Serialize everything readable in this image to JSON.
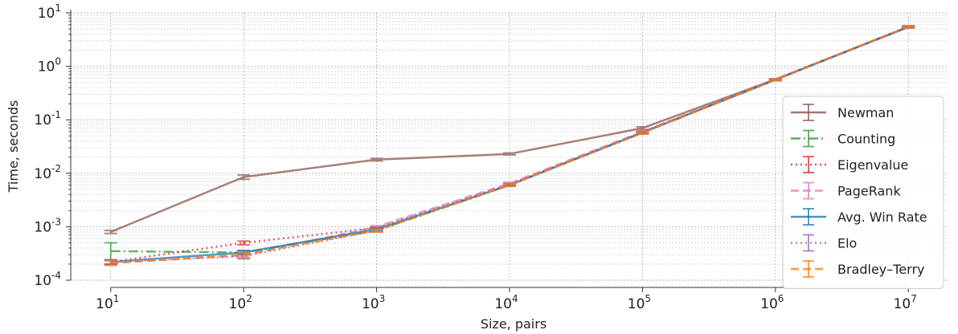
{
  "chart_data": {
    "type": "line",
    "title": "",
    "xlabel": "Size, pairs",
    "ylabel": "Time, seconds",
    "xscale": "log",
    "yscale": "log",
    "xlim": [
      5,
      20000000
    ],
    "ylim": [
      0.0001,
      10
    ],
    "grid": true,
    "legend_position": "right",
    "x": [
      10,
      100,
      1000,
      10000,
      100000,
      1000000,
      10000000
    ],
    "x_tick_labels": [
      {
        "base": "10",
        "exp": "1"
      },
      {
        "base": "10",
        "exp": "2"
      },
      {
        "base": "10",
        "exp": "3"
      },
      {
        "base": "10",
        "exp": "4"
      },
      {
        "base": "10",
        "exp": "5"
      },
      {
        "base": "10",
        "exp": "6"
      },
      {
        "base": "10",
        "exp": "7"
      }
    ],
    "y_ticks": [
      0.0001,
      0.001,
      0.01,
      0.1,
      1,
      10
    ],
    "y_tick_labels": [
      {
        "base": "10",
        "exp": "-4"
      },
      {
        "base": "10",
        "exp": "-3"
      },
      {
        "base": "10",
        "exp": "-2"
      },
      {
        "base": "10",
        "exp": "-1"
      },
      {
        "base": "10",
        "exp": "0"
      },
      {
        "base": "10",
        "exp": "1"
      }
    ],
    "series": [
      {
        "name": "Newman",
        "color": "#8c564b",
        "dash": "solid",
        "values": [
          0.0008,
          0.0085,
          0.018,
          0.023,
          0.07,
          0.57,
          5.4
        ],
        "err": [
          5e-05,
          0.0008,
          0.001,
          0.001,
          0.004,
          0.02,
          0.2
        ]
      },
      {
        "name": "Counting",
        "color": "#2ca02c",
        "dash": "dashdot",
        "values": [
          0.00035,
          0.00033,
          0.00085,
          0.006,
          0.058,
          0.56,
          5.5
        ],
        "err": [
          0.00015,
          3e-05,
          5e-05,
          0.0003,
          0.003,
          0.02,
          0.2
        ]
      },
      {
        "name": "Eigenvalue",
        "color": "#d62728",
        "dash": "dotted",
        "values": [
          0.00022,
          0.0005,
          0.00095,
          0.0062,
          0.058,
          0.57,
          5.5
        ],
        "err": [
          2e-05,
          4e-05,
          5e-05,
          0.0003,
          0.003,
          0.02,
          0.2
        ]
      },
      {
        "name": "PageRank",
        "color": "#e377c2",
        "dash": "dashed",
        "values": [
          0.00021,
          0.00029,
          0.001,
          0.0065,
          0.06,
          0.57,
          5.5
        ],
        "err": [
          2e-05,
          3e-05,
          5e-05,
          0.0003,
          0.003,
          0.02,
          0.2
        ]
      },
      {
        "name": "Avg. Win Rate",
        "color": "#1f77b4",
        "dash": "solid",
        "values": [
          0.00022,
          0.00033,
          0.0009,
          0.006,
          0.058,
          0.56,
          5.5
        ],
        "err": [
          2e-05,
          3e-05,
          5e-05,
          0.0003,
          0.003,
          0.02,
          0.2
        ]
      },
      {
        "name": "Elo",
        "color": "#9467bd",
        "dash": "dotted",
        "values": [
          0.00022,
          0.00028,
          0.00085,
          0.006,
          0.057,
          0.56,
          5.5
        ],
        "err": [
          2e-05,
          3e-05,
          5e-05,
          0.0003,
          0.003,
          0.02,
          0.2
        ]
      },
      {
        "name": "Bradley–Terry",
        "color": "#ff7f0e",
        "dash": "dashed",
        "values": [
          0.00021,
          0.0003,
          0.00085,
          0.006,
          0.057,
          0.56,
          5.5
        ],
        "err": [
          2e-05,
          3e-05,
          5e-05,
          0.0003,
          0.003,
          0.02,
          0.2
        ]
      }
    ]
  }
}
